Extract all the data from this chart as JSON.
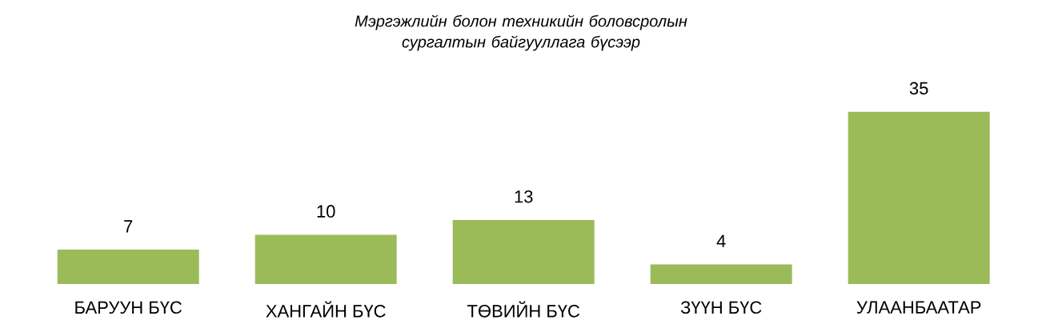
{
  "chart_data": {
    "type": "bar",
    "title": "Мэргэжлийн болон техникийн боловсролын сургалтын байгууллага бүсээр",
    "categories": [
      "БАРУУН БҮС",
      "ХАНГАЙН БҮС",
      "ТӨВИЙН БҮС",
      "ЗҮҮН БҮС",
      "УЛААНБААТАР"
    ],
    "values": [
      7,
      10,
      13,
      4,
      35
    ],
    "color": "#9bbb59",
    "data_labels": true
  }
}
